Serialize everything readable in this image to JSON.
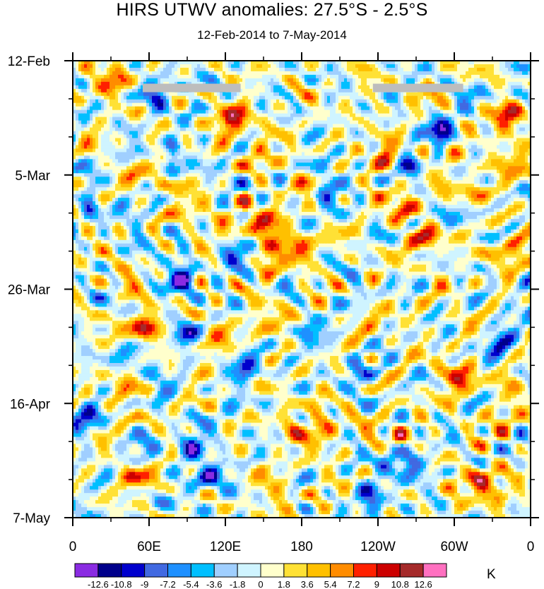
{
  "chart_data": {
    "type": "heatmap",
    "title": "HIRS UTWV anomalies: 27.5°S - 2.5°S",
    "subtitle": "12-Feb-2014 to 7-May-2014",
    "x_ticks": [
      "0",
      "60E",
      "120E",
      "180",
      "120W",
      "60W",
      "0"
    ],
    "x_tick_values": [
      0,
      60,
      120,
      180,
      240,
      300,
      360
    ],
    "xlim": [
      0,
      360
    ],
    "y_ticks": [
      "12-Feb",
      "5-Mar",
      "26-Mar",
      "16-Apr",
      "7-May"
    ],
    "y_tick_dates": [
      "2014-02-12",
      "2014-03-05",
      "2014-03-26",
      "2014-04-16",
      "2014-05-07"
    ],
    "ylim": [
      "2014-02-12",
      "2014-05-07"
    ],
    "y_reversed": true,
    "colorbar": {
      "labels": [
        "-12.6",
        "-10.8",
        "-9",
        "-7.2",
        "-5.4",
        "-3.6",
        "-1.8",
        "0",
        "1.8",
        "3.6",
        "5.4",
        "7.2",
        "9",
        "10.8",
        "12.6"
      ],
      "levels": [
        -12.6,
        -10.8,
        -9,
        -7.2,
        -5.4,
        -3.6,
        -1.8,
        0,
        1.8,
        3.6,
        5.4,
        7.2,
        9,
        10.8,
        12.6
      ],
      "colors": [
        "#8a2be2",
        "#00008b",
        "#0000cd",
        "#4169e1",
        "#1e90ff",
        "#00bfff",
        "#a0cfff",
        "#cff4ff",
        "#ffffcc",
        "#ffe135",
        "#ffc000",
        "#ff8c00",
        "#ff2000",
        "#cc0000",
        "#a52a2a",
        "#ff70c0"
      ],
      "units": "K"
    },
    "anomaly_features": [
      {
        "lon": 125,
        "date": "2014-02-23",
        "value": 11.0
      },
      {
        "lon": 155,
        "date": "2014-03-15",
        "value": 11.0
      },
      {
        "lon": 180,
        "date": "2014-03-18",
        "value": 9.0
      },
      {
        "lon": 55,
        "date": "2014-04-02",
        "value": 11.5
      },
      {
        "lon": 195,
        "date": "2014-04-21",
        "value": 8.5
      },
      {
        "lon": 340,
        "date": "2014-02-22",
        "value": 9.5
      },
      {
        "lon": 282,
        "date": "2014-03-16",
        "value": 8.0
      },
      {
        "lon": 320,
        "date": "2014-05-01",
        "value": 9.0
      },
      {
        "lon": 245,
        "date": "2014-03-01",
        "value": 8.5
      },
      {
        "lon": 290,
        "date": "2014-02-25",
        "value": -11.5
      },
      {
        "lon": 200,
        "date": "2014-03-08",
        "value": -7.5
      },
      {
        "lon": 265,
        "date": "2014-03-03",
        "value": -9.5
      },
      {
        "lon": 85,
        "date": "2014-03-24",
        "value": -9.5
      },
      {
        "lon": 90,
        "date": "2014-04-03",
        "value": -10.0
      },
      {
        "lon": 135,
        "date": "2014-04-09",
        "value": -9.5
      },
      {
        "lon": 335,
        "date": "2014-04-05",
        "value": -8.5
      },
      {
        "lon": 10,
        "date": "2014-04-18",
        "value": -9.0
      },
      {
        "lon": 95,
        "date": "2014-04-24",
        "value": -10.5
      },
      {
        "lon": 265,
        "date": "2014-04-27",
        "value": -8.5
      },
      {
        "lon": 230,
        "date": "2014-04-10",
        "value": -8.0
      },
      {
        "lon": 65,
        "date": "2014-02-19",
        "value": -7.5
      },
      {
        "lon": 305,
        "date": "2014-04-11",
        "value": 9.5
      },
      {
        "lon": 110,
        "date": "2014-04-30",
        "value": -9.0
      },
      {
        "lon": 235,
        "date": "2014-05-04",
        "value": -7.5
      },
      {
        "lon": 260,
        "date": "2014-03-10",
        "value": 8.0
      },
      {
        "lon": 30,
        "date": "2014-02-16",
        "value": 6.5
      },
      {
        "lon": 345,
        "date": "2014-03-19",
        "value": 7.5
      },
      {
        "lon": 45,
        "date": "2014-04-30",
        "value": 6.5
      }
    ],
    "missing_segments": [
      {
        "lon_start": 55,
        "lon_end": 132,
        "date": "2014-02-17"
      },
      {
        "lon_start": 236,
        "lon_end": 307,
        "date": "2014-02-17"
      }
    ]
  }
}
